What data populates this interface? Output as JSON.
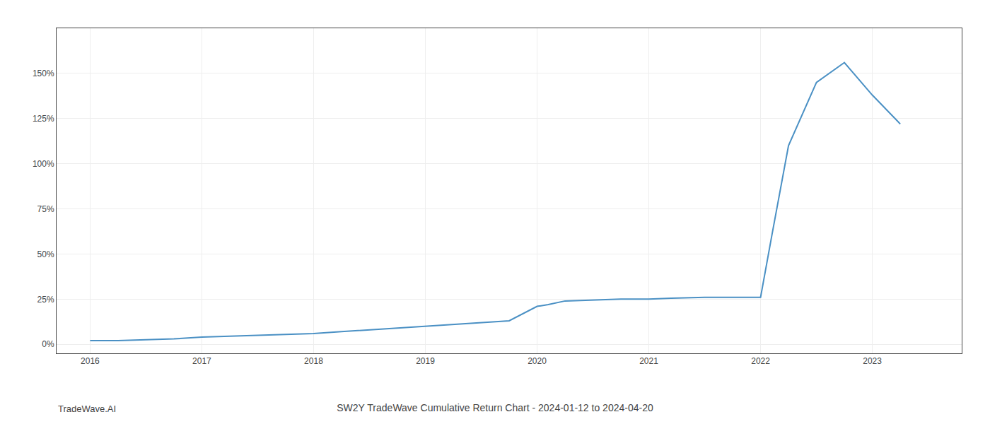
{
  "chart_data": {
    "type": "line",
    "title": "SW2Y TradeWave Cumulative Return Chart - 2024-01-12 to 2024-04-20",
    "annotations": [
      "TradeWave.AI"
    ],
    "color": "#4a90c4",
    "x": [
      2016.0,
      2016.25,
      2016.5,
      2016.75,
      2017.0,
      2017.25,
      2017.5,
      2017.75,
      2018.0,
      2018.25,
      2018.5,
      2018.75,
      2019.0,
      2019.25,
      2019.5,
      2019.75,
      2020.0,
      2020.1,
      2020.25,
      2020.5,
      2020.75,
      2021.0,
      2021.1,
      2021.2,
      2021.5,
      2021.75,
      2022.0,
      2022.1,
      2022.25,
      2022.5,
      2022.75,
      2023.0,
      2023.25
    ],
    "values": [
      0.02,
      0.02,
      0.025,
      0.03,
      0.04,
      0.045,
      0.05,
      0.055,
      0.06,
      0.07,
      0.08,
      0.09,
      0.1,
      0.11,
      0.12,
      0.13,
      0.21,
      0.22,
      0.24,
      0.245,
      0.25,
      0.25,
      0.253,
      0.255,
      0.26,
      0.26,
      0.26,
      0.6,
      1.1,
      1.45,
      1.56,
      1.38,
      1.22
    ],
    "xlim": [
      2015.7,
      2023.8
    ],
    "ylim": [
      -0.05,
      1.75
    ],
    "xticks": [
      2016,
      2017,
      2018,
      2019,
      2020,
      2021,
      2022,
      2023
    ],
    "yticks": [
      {
        "value": 0.0,
        "label": "0%"
      },
      {
        "value": 0.25,
        "label": "25%"
      },
      {
        "value": 0.5,
        "label": "50%"
      },
      {
        "value": 0.75,
        "label": "75%"
      },
      {
        "value": 1.0,
        "label": "100%"
      },
      {
        "value": 1.25,
        "label": "125%"
      },
      {
        "value": 1.5,
        "label": "150%"
      }
    ],
    "grid": true
  }
}
